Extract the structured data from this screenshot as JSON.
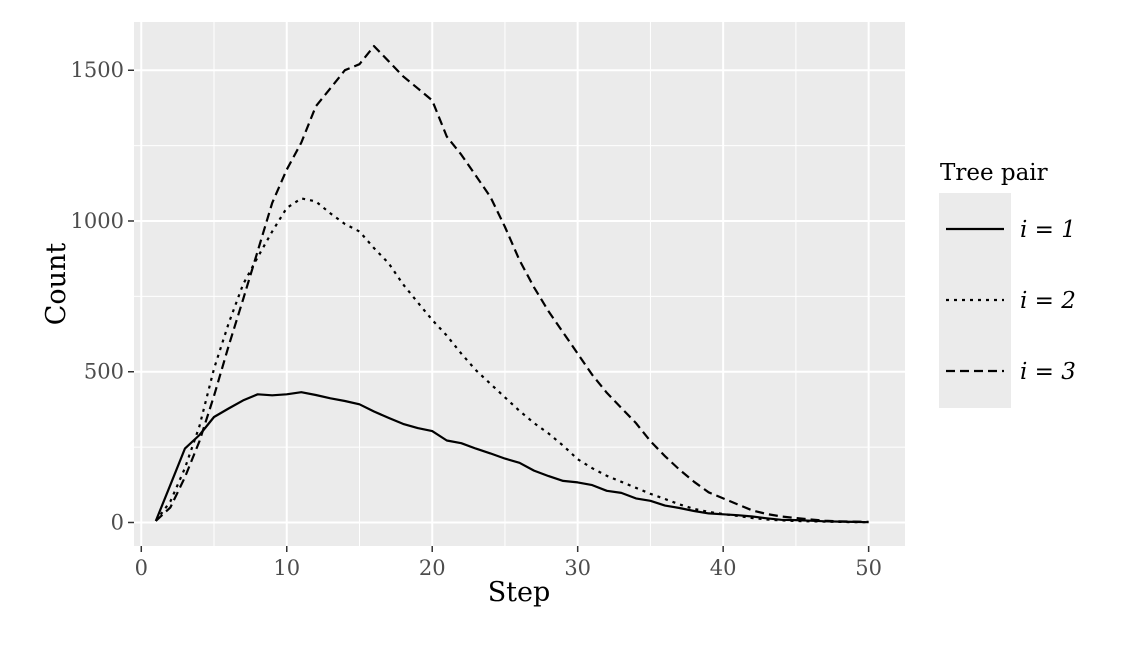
{
  "chart_data": {
    "type": "line",
    "xlabel": "Step",
    "ylabel": "Count",
    "xlim": [
      -0.5,
      52.5
    ],
    "ylim": [
      -78,
      1660
    ],
    "x_ticks": [
      0,
      10,
      20,
      30,
      40,
      50
    ],
    "x_tick_labels": [
      "0",
      "10",
      "20",
      "30",
      "40",
      "50"
    ],
    "y_ticks": [
      0,
      500,
      1000,
      1500
    ],
    "y_tick_labels": [
      "0",
      "500",
      "1000",
      "1500"
    ],
    "grid": true,
    "background": "#ebebeb",
    "grid_color": "#ffffff",
    "line_color": "#000000",
    "legend": {
      "title": "Tree pair",
      "placement": "right",
      "entries": [
        {
          "label": "i = 1",
          "linestyle": "solid"
        },
        {
          "label": "i = 2",
          "linestyle": "dotted"
        },
        {
          "label": "i = 3",
          "linestyle": "dashed"
        }
      ]
    },
    "series": [
      {
        "name": "i = 1",
        "linestyle": "solid",
        "x": [
          1,
          2,
          3,
          4,
          5,
          6,
          7,
          8,
          9,
          10,
          11,
          12,
          13,
          14,
          15,
          16,
          17,
          18,
          19,
          20,
          21,
          22,
          23,
          24,
          25,
          26,
          27,
          28,
          29,
          30,
          31,
          32,
          33,
          34,
          35,
          36,
          37,
          38,
          39,
          40,
          41,
          42,
          43,
          44,
          45,
          46,
          47,
          48,
          49,
          50
        ],
        "y": [
          5,
          125,
          245,
          290,
          350,
          378,
          405,
          425,
          422,
          425,
          432,
          423,
          412,
          403,
          392,
          368,
          347,
          327,
          313,
          303,
          272,
          263,
          245,
          229,
          212,
          198,
          172,
          154,
          138,
          133,
          124,
          105,
          98,
          80,
          72,
          56,
          48,
          38,
          30,
          27,
          24,
          20,
          14,
          9,
          8,
          6,
          4,
          3,
          2,
          1
        ]
      },
      {
        "name": "i = 2",
        "linestyle": "dotted",
        "x": [
          1,
          2,
          3,
          4,
          5,
          6,
          7,
          8,
          9,
          10,
          11,
          12,
          13,
          14,
          15,
          16,
          17,
          18,
          19,
          20,
          21,
          22,
          23,
          24,
          25,
          26,
          27,
          28,
          29,
          30,
          31,
          32,
          33,
          34,
          35,
          36,
          37,
          38,
          39,
          40,
          41,
          42,
          43,
          44,
          45,
          46,
          47,
          48,
          49,
          50
        ],
        "y": [
          5,
          70,
          180,
          320,
          510,
          660,
          790,
          880,
          965,
          1043,
          1075,
          1065,
          1025,
          990,
          965,
          910,
          860,
          790,
          730,
          672,
          620,
          560,
          505,
          460,
          415,
          370,
          330,
          295,
          255,
          210,
          180,
          155,
          135,
          115,
          95,
          78,
          60,
          45,
          35,
          28,
          22,
          15,
          10,
          7,
          5,
          4,
          3,
          2,
          1,
          1
        ]
      },
      {
        "name": "i = 3",
        "linestyle": "dashed",
        "x": [
          1,
          2,
          3,
          4,
          5,
          6,
          7,
          8,
          9,
          10,
          11,
          12,
          13,
          14,
          15,
          16,
          17,
          18,
          19,
          20,
          21,
          22,
          23,
          24,
          25,
          26,
          27,
          28,
          29,
          30,
          31,
          32,
          33,
          34,
          35,
          36,
          37,
          38,
          39,
          40,
          41,
          42,
          43,
          44,
          45,
          46,
          47,
          48,
          49,
          50
        ],
        "y": [
          5,
          50,
          150,
          270,
          420,
          585,
          740,
          900,
          1060,
          1170,
          1260,
          1380,
          1440,
          1500,
          1520,
          1580,
          1530,
          1480,
          1440,
          1400,
          1280,
          1220,
          1150,
          1080,
          980,
          870,
          780,
          700,
          630,
          560,
          490,
          430,
          380,
          330,
          270,
          220,
          175,
          135,
          100,
          80,
          60,
          40,
          28,
          20,
          15,
          10,
          6,
          4,
          3,
          2
        ]
      }
    ]
  }
}
